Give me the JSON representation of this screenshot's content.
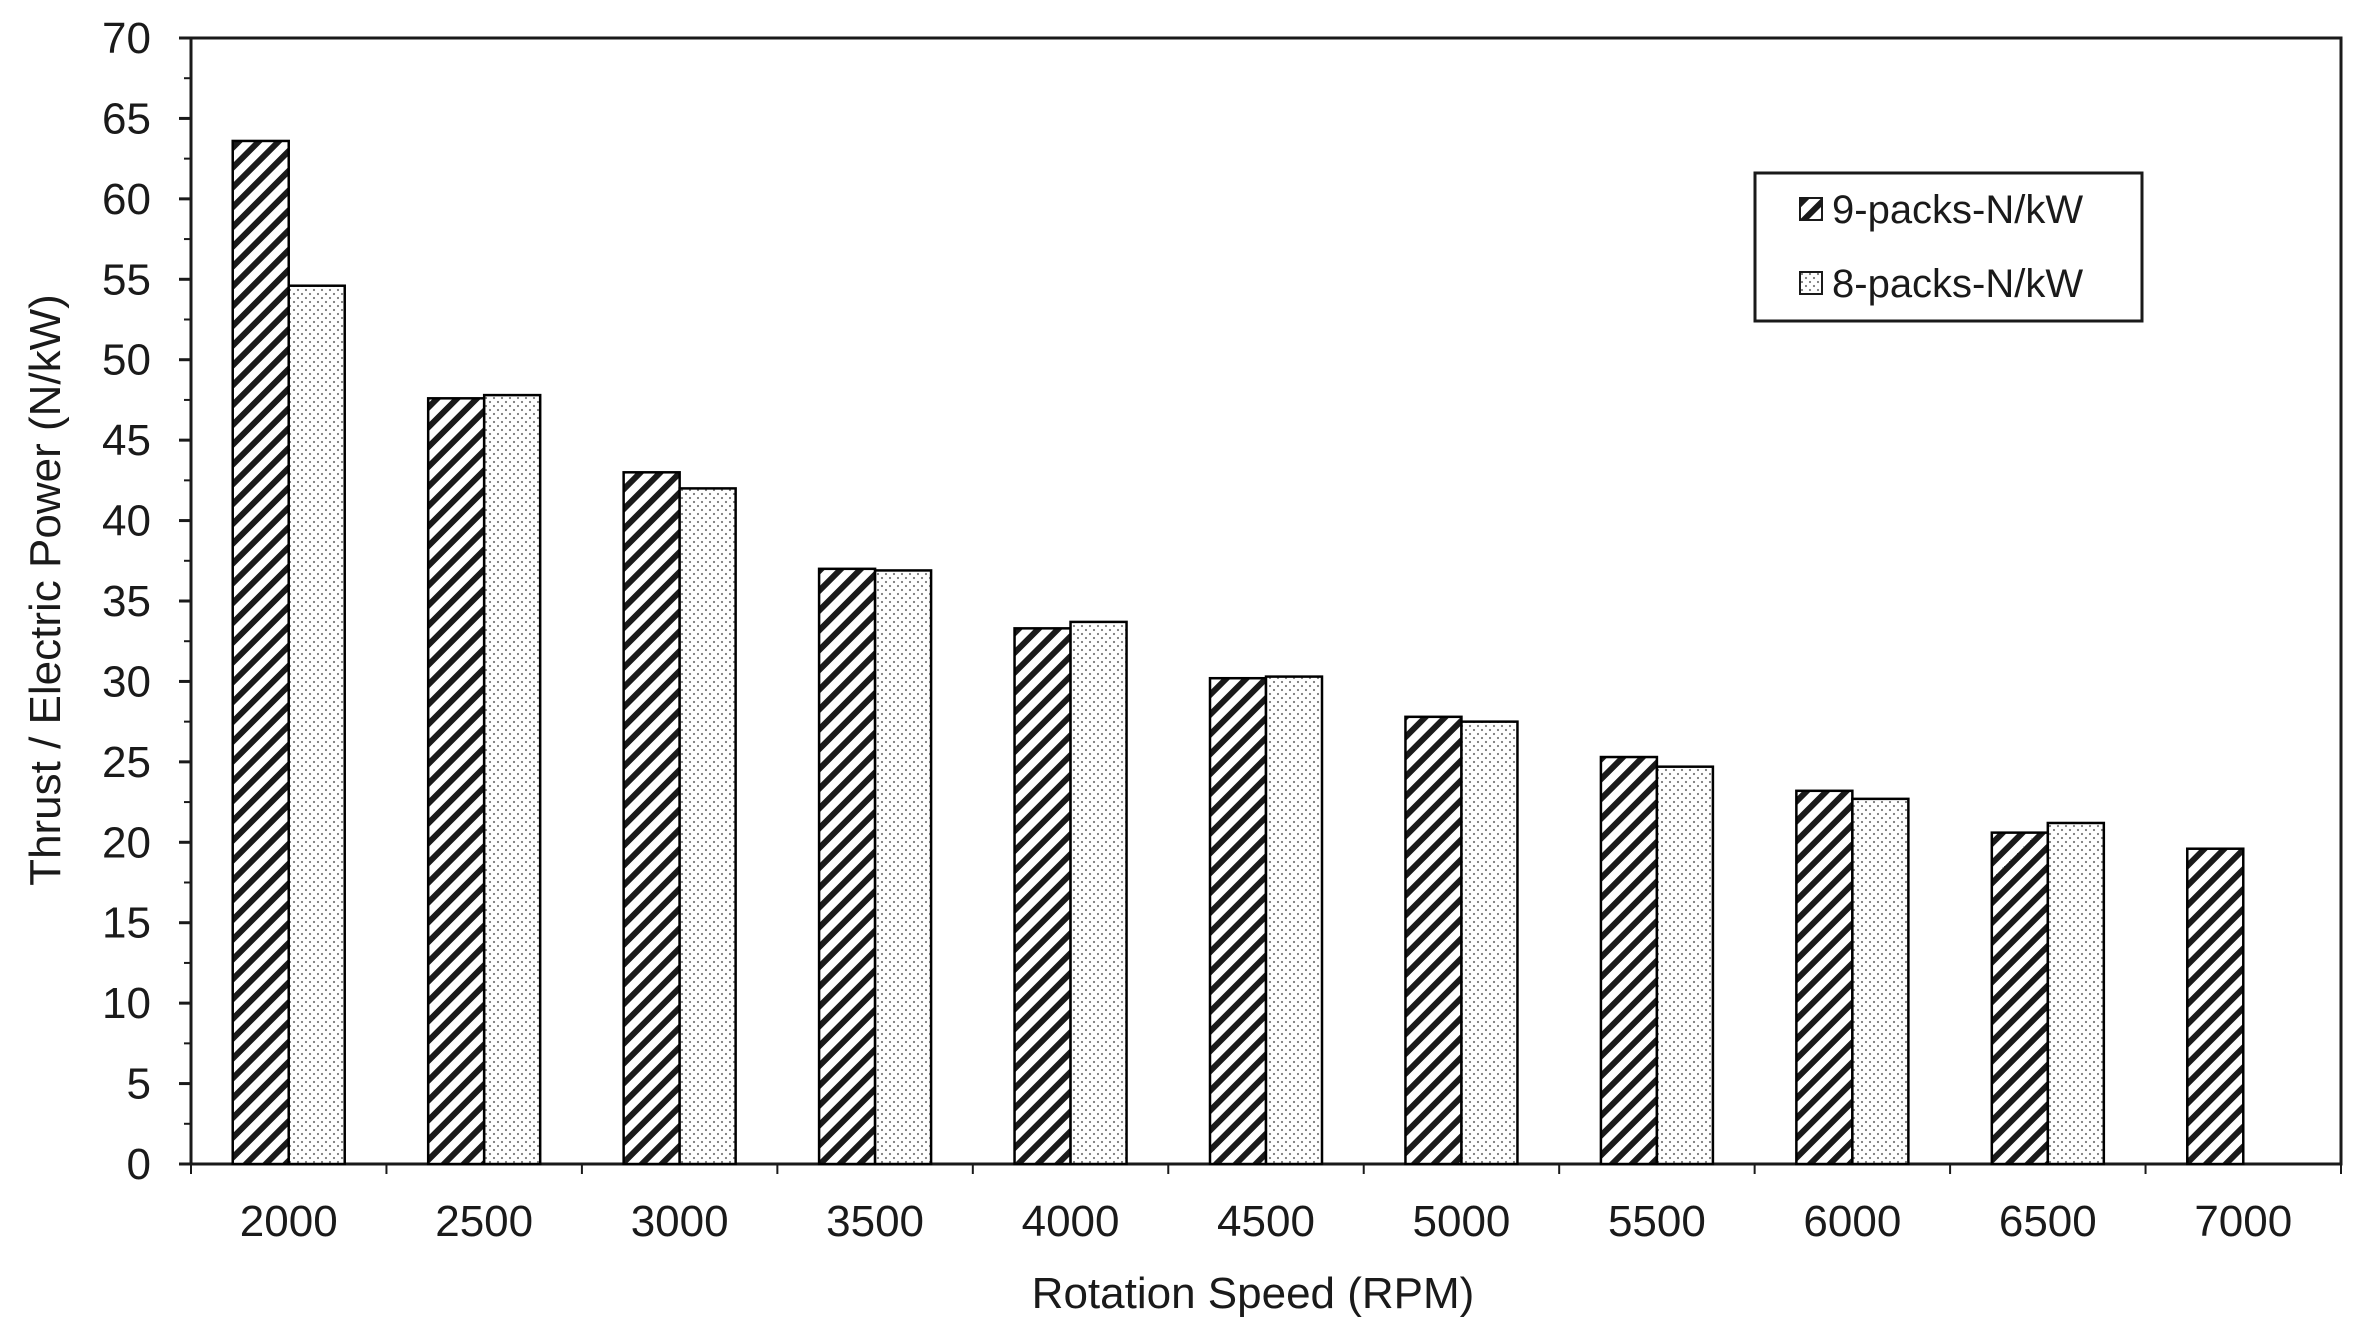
{
  "chart_data": {
    "type": "bar",
    "title": "",
    "xlabel": "Rotation Speed (RPM)",
    "ylabel": "Thrust / Electric Power  (N/kW)",
    "categories": [
      "2000",
      "2500",
      "3000",
      "3500",
      "4000",
      "4500",
      "5000",
      "5500",
      "6000",
      "6500",
      "7000"
    ],
    "series": [
      {
        "name": "9-packs-N/kW",
        "pattern": "diagonal-hatch",
        "values": [
          63.6,
          47.6,
          43.0,
          37.0,
          33.3,
          30.2,
          27.8,
          25.3,
          23.2,
          20.6,
          19.6
        ]
      },
      {
        "name": "8-packs-N/kW",
        "pattern": "dotted",
        "values": [
          54.6,
          47.8,
          42.0,
          36.9,
          33.7,
          30.3,
          27.5,
          24.7,
          22.7,
          21.2,
          null
        ]
      }
    ],
    "ylim": [
      0,
      70
    ],
    "yticks": [
      "0",
      "5",
      "10",
      "15",
      "20",
      "25",
      "30",
      "35",
      "40",
      "45",
      "50",
      "55",
      "60",
      "65",
      "70"
    ],
    "grid": false,
    "legend_position": "top-right",
    "colors": {
      "bar_stroke": "#000000",
      "hatch": "#1a1a1a",
      "dots": "#7a7a7a",
      "background": "#ffffff"
    }
  }
}
